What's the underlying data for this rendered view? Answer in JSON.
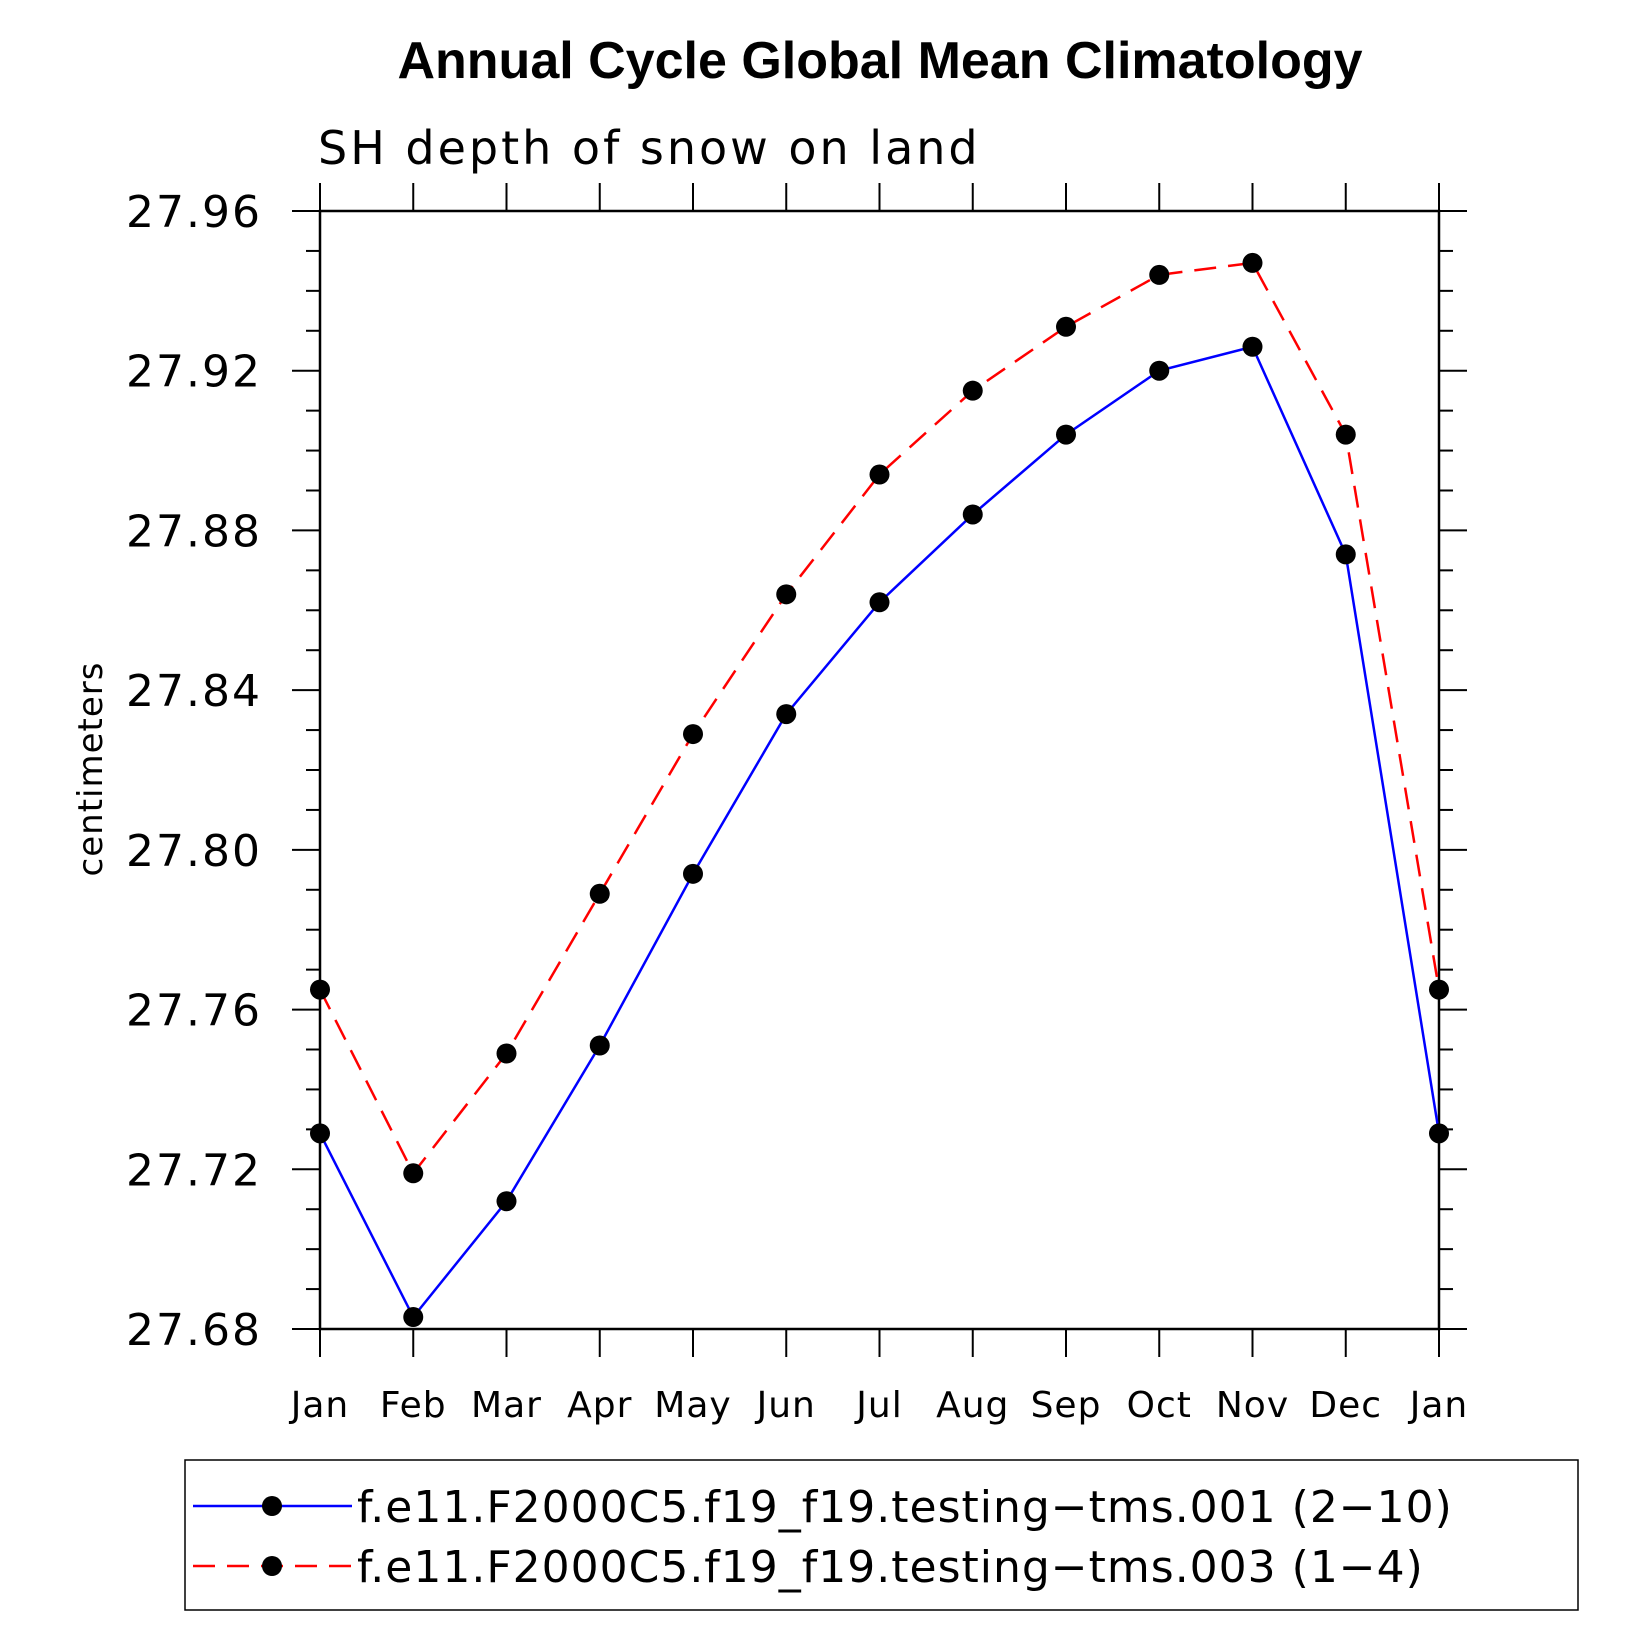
{
  "chart_data": {
    "type": "line",
    "title": "Annual Cycle Global Mean Climatology",
    "subtitle": "SH depth of snow on land",
    "ylabel": "centimeters",
    "xlabel": "",
    "categories": [
      "Jan",
      "Feb",
      "Mar",
      "Apr",
      "May",
      "Jun",
      "Jul",
      "Aug",
      "Sep",
      "Oct",
      "Nov",
      "Dec",
      "Jan"
    ],
    "ylim": [
      27.68,
      27.96
    ],
    "yticks": [
      "27.68",
      "27.72",
      "27.76",
      "27.80",
      "27.84",
      "27.88",
      "27.92",
      "27.96"
    ],
    "ytick_values": [
      27.68,
      27.72,
      27.76,
      27.8,
      27.84,
      27.88,
      27.92,
      27.96
    ],
    "yminor_step": 0.01,
    "series": [
      {
        "name": "f.e11.F2000C5.f19_f19.testing−tms.001 (2−10)",
        "color": "#0000ff",
        "dash": "solid",
        "marker": "filled-circle",
        "values": [
          27.729,
          27.683,
          27.712,
          27.751,
          27.794,
          27.834,
          27.862,
          27.884,
          27.904,
          27.92,
          27.926,
          27.874,
          27.729
        ]
      },
      {
        "name": "f.e11.F2000C5.f19_f19.testing−tms.003 (1−4)",
        "color": "#ff0000",
        "dash": "dashed",
        "marker": "filled-circle",
        "values": [
          27.765,
          27.719,
          27.749,
          27.789,
          27.829,
          27.864,
          27.894,
          27.915,
          27.931,
          27.944,
          27.947,
          27.904,
          27.765
        ]
      }
    ],
    "legend_position": "bottom",
    "grid": false
  }
}
